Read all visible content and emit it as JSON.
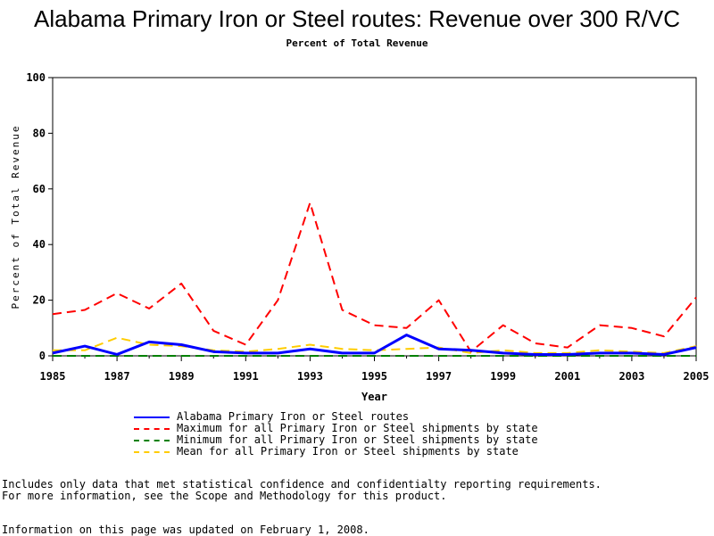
{
  "chart_data": {
    "type": "line",
    "title": "Alabama Primary Iron or Steel routes: Revenue over 300 R/VC",
    "subtitle": "Percent of Total Revenue",
    "xlabel": "Year",
    "ylabel": "Percent of Total Revenue",
    "x": [
      1985,
      1986,
      1987,
      1988,
      1989,
      1990,
      1991,
      1992,
      1993,
      1994,
      1995,
      1996,
      1997,
      1998,
      1999,
      2000,
      2001,
      2002,
      2003,
      2004,
      2005
    ],
    "xticks": [
      1985,
      1987,
      1989,
      1991,
      1993,
      1995,
      1997,
      1999,
      2001,
      2003,
      2005
    ],
    "yticks": [
      0,
      20,
      40,
      60,
      80,
      100
    ],
    "xlim": [
      1985,
      2005
    ],
    "ylim": [
      0,
      100
    ],
    "grid": false,
    "legend_position": "bottom",
    "series": [
      {
        "name": "Alabama Primary Iron or Steel routes",
        "color": "#0000ff",
        "dash": "solid",
        "values": [
          1,
          3.5,
          0.5,
          5,
          4,
          1.5,
          1,
          1,
          2.5,
          1,
          1,
          7.5,
          2.5,
          2,
          1,
          0.5,
          0.5,
          1,
          1,
          0.5,
          3
        ]
      },
      {
        "name": "Maximum for all Primary Iron or Steel shipments by state",
        "color": "#ff0000",
        "dash": "dashed",
        "values": [
          15,
          16.5,
          22.5,
          17,
          26,
          9,
          4,
          20,
          55,
          16.5,
          11,
          10,
          20,
          1.5,
          11,
          4.5,
          3,
          11,
          10,
          7,
          21
        ]
      },
      {
        "name": "Minimum for all Primary Iron or Steel shipments by state",
        "color": "#008000",
        "dash": "dashed",
        "values": [
          0,
          0,
          0,
          0,
          0,
          0,
          0,
          0,
          0,
          0,
          0,
          0,
          0,
          0,
          0,
          0,
          0,
          0,
          0,
          0,
          0
        ]
      },
      {
        "name": "Mean for all Primary Iron or Steel shipments by state",
        "color": "#ffcc00",
        "dash": "dashed",
        "values": [
          2,
          2,
          6.5,
          4,
          3.5,
          2,
          1.5,
          2.5,
          4,
          2.5,
          2,
          2.5,
          3,
          1,
          2,
          1,
          1,
          2,
          1.5,
          1,
          3.5
        ]
      }
    ]
  },
  "notes": {
    "line1": "Includes only data that met statistical confidence and confidentialty reporting requirements.",
    "line2": "For more information, see the Scope and Methodology for this product.",
    "updated": "Information on this page was updated on February 1, 2008."
  }
}
